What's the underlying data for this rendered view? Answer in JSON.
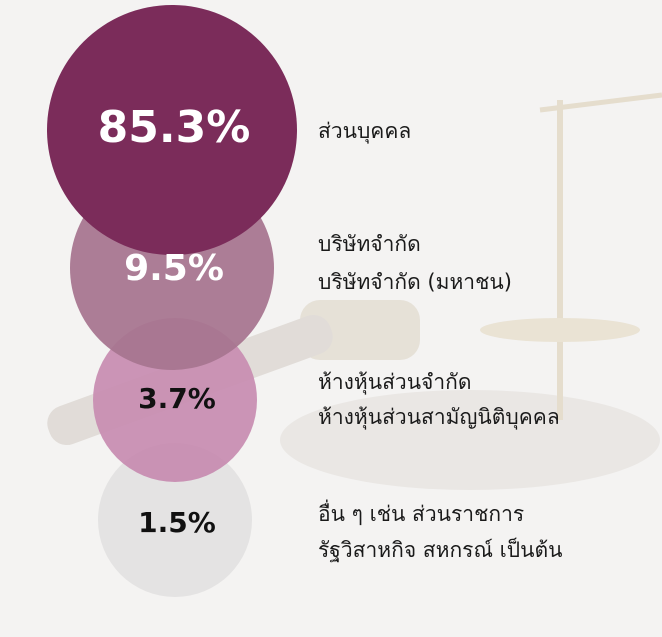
{
  "items": [
    {
      "value": "85.3%",
      "lines": [
        "ส่วนบุคคล"
      ]
    },
    {
      "value": "9.5%",
      "lines": [
        "บริษัทจำกัด",
        "บริษัทจำกัด (มหาชน)"
      ]
    },
    {
      "value": "3.7%",
      "lines": [
        "ห้างหุ้นส่วนจำกัด",
        "ห้างหุ้นส่วนสามัญนิติบุคคล"
      ]
    },
    {
      "value": "1.5%",
      "lines": [
        "อื่น ๆ เช่น ส่วนราชการ",
        "รัฐวิสาหกิจ สหกรณ์ เป็นต้น"
      ]
    }
  ]
}
